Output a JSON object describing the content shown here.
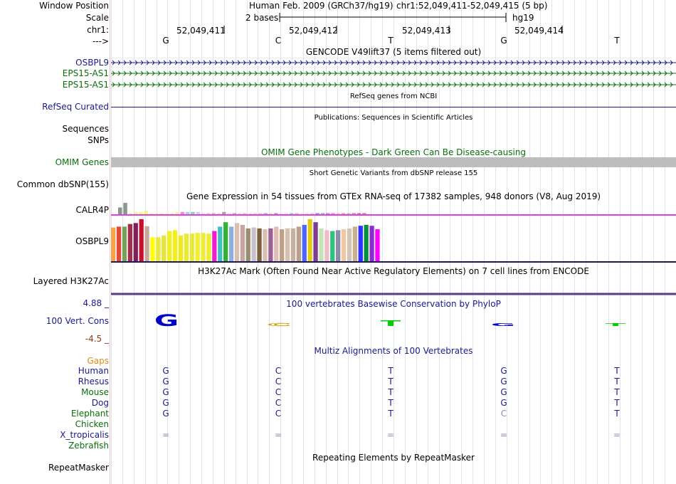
{
  "header": {
    "window_position_label": "Window Position",
    "scale_label": "Scale",
    "chrom_label": "chr1:",
    "strand_label": "--->",
    "assembly": "Human Feb. 2009 (GRCh37/hg19)",
    "position": "chr1:52,049,411-52,049,415 (5 bp)",
    "scale_text": "2 bases",
    "db": "hg19",
    "coords": [
      "52,049,411",
      "52,049,412",
      "52,049,413",
      "52,049,414"
    ],
    "bases": [
      "G",
      "C",
      "T",
      "G",
      "T"
    ]
  },
  "gencode": {
    "title": "GENCODE V49lift37 (5 items filtered out)",
    "tracks": [
      {
        "label": "OSBPL9",
        "color": "#1a1a8c"
      },
      {
        "label": "EPS15-AS1",
        "color": "#0b6e0b"
      },
      {
        "label": "EPS15-AS1",
        "color": "#0b6e0b"
      }
    ]
  },
  "refseq": {
    "title": "RefSeq genes from NCBI",
    "label": "RefSeq Curated",
    "color": "#1a1a8c"
  },
  "publications": {
    "title": "Publications: Sequences in Scientific Articles",
    "label1": "Sequences",
    "label2": "SNPs"
  },
  "omim": {
    "title": "OMIM Gene Phenotypes - Dark Green Can Be Disease-causing",
    "label": "OMIM Genes",
    "color": "#0b6e0b"
  },
  "dbsnp": {
    "title": "Short Genetic Variants from dbSNP release 155",
    "label": "Common dbSNP(155)"
  },
  "gtex": {
    "title": "Gene Expression in 54 tissues from GTEx RNA-seq of 17382 samples, 948 donors (V8, Aug 2019)",
    "gene1": "CALR4P",
    "gene2": "OSBPL9",
    "colors": [
      "#f6a34a",
      "#e34a33",
      "#77a05b",
      "#a02f4a",
      "#7f1f5a",
      "#c8102e",
      "#c9a89a",
      "#ffff00",
      "#e8e83c",
      "#e6e63a",
      "#f0f020",
      "#f2ef1a",
      "#eeea20",
      "#eaea30",
      "#e8e838",
      "#f0f02e",
      "#eeee3a",
      "#ecec30",
      "#ef1dd0",
      "#3ec0c0",
      "#34b034",
      "#8fb0dd",
      "#d8c0b0",
      "#c6a4a0",
      "#9c8c70",
      "#c6c2c8",
      "#7e6040",
      "#d8c0b0",
      "#9c6090",
      "#e4bcb4",
      "#bea084",
      "#d8c0b0",
      "#c6b0a0",
      "#b8a08c",
      "#4c66ff",
      "#e0cc14",
      "#7e3c94",
      "#c4e4b4",
      "#f0bcc8",
      "#30c080",
      "#8c8ca4",
      "#f0c8a0",
      "#d4c4b4",
      "#c8b090",
      "#3030ff",
      "#009040",
      "#8c2ccc",
      "#ff00ff"
    ],
    "heights": [
      0.78,
      0.8,
      0.8,
      0.86,
      0.88,
      0.97,
      0.81,
      0.56,
      0.56,
      0.6,
      0.7,
      0.72,
      0.6,
      0.64,
      0.64,
      0.66,
      0.66,
      0.64,
      0.7,
      0.8,
      0.9,
      0.8,
      0.88,
      0.84,
      0.76,
      0.78,
      0.76,
      0.74,
      0.76,
      0.8,
      0.74,
      0.76,
      0.76,
      0.8,
      0.84,
      0.97,
      0.9,
      0.76,
      0.72,
      0.7,
      0.72,
      0.74,
      0.76,
      0.8,
      0.82,
      0.84,
      0.82,
      0.74
    ],
    "calr_heights": [
      0.6,
      1.0,
      0.1,
      0.2,
      0.2,
      0.3,
      0.1,
      0.1,
      0.1,
      0.1,
      0.1,
      0.2,
      0.2,
      0.2,
      0.2,
      0.2,
      0.1,
      0.1,
      0.1,
      0.1,
      0.2,
      0.1,
      0.1,
      0.1,
      0.1,
      0.1,
      0.1,
      0.1,
      0.1,
      0.1,
      0.1,
      0.1,
      0.1,
      0.1,
      0.1,
      0.1,
      0.1,
      0.1,
      0.1,
      0.1,
      0.1,
      0.1,
      0.1,
      0.1,
      0.1,
      0.1,
      0.1,
      0.1
    ]
  },
  "h3k27ac": {
    "title": "H3K27Ac Mark (Often Found Near Active Regulatory Elements) on 7 cell lines from ENCODE",
    "label": "Layered H3K27Ac"
  },
  "phylop": {
    "title": "100 vertebrates Basewise Conservation by PhyloP",
    "label": "100 Vert. Cons",
    "max": "4.88 _",
    "min": "-4.5 _",
    "color_pos": "#0000cc",
    "values": [
      4.1,
      -0.6,
      2.0,
      1.0,
      0.5
    ]
  },
  "multiz": {
    "title": "Multiz Alignments of 100 Vertebrates",
    "gaps_label": "Gaps",
    "species": [
      {
        "name": "Human",
        "bases": [
          "G",
          "C",
          "T",
          "G",
          "T"
        ],
        "color": "#1a1a8c"
      },
      {
        "name": "Rhesus",
        "bases": [
          "G",
          "C",
          "T",
          "G",
          "T"
        ],
        "color": "#1a1a8c"
      },
      {
        "name": "Mouse",
        "bases": [
          "G",
          "C",
          "T",
          "G",
          "T"
        ],
        "color": "#0b6e0b"
      },
      {
        "name": "Dog",
        "bases": [
          "G",
          "C",
          "T",
          "G",
          "T"
        ],
        "color": "#1a1a8c"
      },
      {
        "name": "Elephant",
        "bases": [
          "G",
          "C",
          "T",
          "C",
          "T"
        ],
        "color": "#0b6e0b"
      },
      {
        "name": "Chicken",
        "bases": [
          "",
          "",
          "",
          "",
          ""
        ],
        "color": "#0b6e0b"
      },
      {
        "name": "X_tropicalis",
        "bases": [
          "=",
          "=",
          "=",
          "=",
          "="
        ],
        "color": "#1a1a8c"
      },
      {
        "name": "Zebrafish",
        "bases": [
          "",
          "",
          "",
          "",
          ""
        ],
        "color": "#0b6e0b"
      }
    ]
  },
  "repeatmasker": {
    "title": "Repeating Elements by RepeatMasker",
    "label": "RepeatMasker"
  }
}
